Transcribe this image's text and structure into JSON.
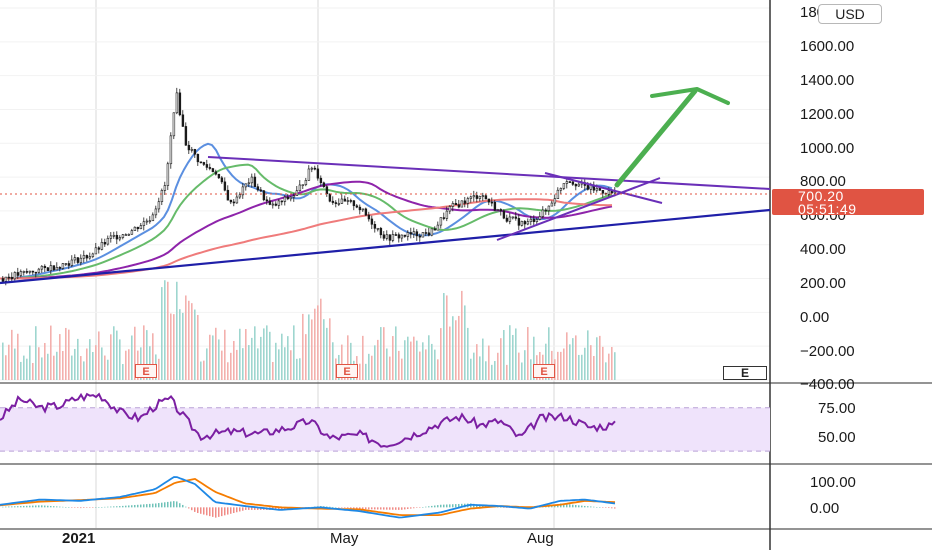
{
  "currency_button": "USD",
  "current_price": "700.20",
  "countdown": "05:51:49",
  "earnings_marker": "E",
  "colors": {
    "up": "#26a69a",
    "down": "#ef5350",
    "rsi": "#7b1fa2",
    "rsi_band": "#efe3fb",
    "ma_fast": "#5b8fe0",
    "ma_mid": "#66bb6a",
    "ma_slow": "#8e24aa",
    "ma_long": "#ef7b7b",
    "trend_purple": "#6a2fb8",
    "trend_blue": "#1f1fa8",
    "projection_arrow": "#4caf50",
    "price_tag": "#e05443",
    "macd": "#1e88e5",
    "signal": "#f57c00"
  },
  "chart_data": [
    {
      "type": "candlestick",
      "title": "",
      "y_axis_labels": [
        "1800.00",
        "1600.00",
        "1400.00",
        "1200.00",
        "1000.00",
        "800.00",
        "600.00",
        "400.00",
        "200.00",
        "0.00",
        "−200.00",
        "−400.00"
      ],
      "x_axis_labels": [
        "2021",
        "May",
        "Aug"
      ],
      "ylim": [
        -400,
        1800
      ],
      "last_price": 700.2,
      "peak_price": 1310,
      "overlays": [
        "moving averages",
        "descending resistance trendline",
        "ascending support trendline",
        "wedge lines",
        "projection arrow"
      ],
      "price_path": [
        {
          "x": 0,
          "close": 200
        },
        {
          "x": 30,
          "close": 240
        },
        {
          "x": 60,
          "close": 280
        },
        {
          "x": 90,
          "close": 340
        },
        {
          "x": 110,
          "close": 440
        },
        {
          "x": 130,
          "close": 480
        },
        {
          "x": 150,
          "close": 560
        },
        {
          "x": 165,
          "close": 760
        },
        {
          "x": 175,
          "close": 1310
        },
        {
          "x": 185,
          "close": 1000
        },
        {
          "x": 200,
          "close": 880
        },
        {
          "x": 215,
          "close": 830
        },
        {
          "x": 230,
          "close": 640
        },
        {
          "x": 250,
          "close": 790
        },
        {
          "x": 270,
          "close": 620
        },
        {
          "x": 295,
          "close": 700
        },
        {
          "x": 312,
          "close": 870
        },
        {
          "x": 330,
          "close": 660
        },
        {
          "x": 355,
          "close": 640
        },
        {
          "x": 385,
          "close": 440
        },
        {
          "x": 410,
          "close": 460
        },
        {
          "x": 430,
          "close": 470
        },
        {
          "x": 450,
          "close": 620
        },
        {
          "x": 480,
          "close": 700
        },
        {
          "x": 505,
          "close": 560
        },
        {
          "x": 525,
          "close": 520
        },
        {
          "x": 545,
          "close": 600
        },
        {
          "x": 565,
          "close": 790
        },
        {
          "x": 585,
          "close": 740
        },
        {
          "x": 600,
          "close": 720
        },
        {
          "x": 615,
          "close": 700
        }
      ]
    },
    {
      "type": "bar",
      "name": "volume",
      "note": "volume histogram under price"
    },
    {
      "type": "line",
      "name": "RSI",
      "y_axis_labels": [
        "75.00",
        "50.00"
      ],
      "ylim": [
        20,
        90
      ],
      "band": [
        30,
        70
      ],
      "points": [
        {
          "x": 0,
          "y": 60
        },
        {
          "x": 20,
          "y": 78
        },
        {
          "x": 40,
          "y": 70
        },
        {
          "x": 60,
          "y": 72
        },
        {
          "x": 80,
          "y": 80
        },
        {
          "x": 100,
          "y": 82
        },
        {
          "x": 120,
          "y": 66
        },
        {
          "x": 140,
          "y": 60
        },
        {
          "x": 155,
          "y": 72
        },
        {
          "x": 170,
          "y": 78
        },
        {
          "x": 185,
          "y": 60
        },
        {
          "x": 200,
          "y": 44
        },
        {
          "x": 230,
          "y": 48
        },
        {
          "x": 260,
          "y": 46
        },
        {
          "x": 290,
          "y": 52
        },
        {
          "x": 310,
          "y": 58
        },
        {
          "x": 330,
          "y": 42
        },
        {
          "x": 360,
          "y": 45
        },
        {
          "x": 385,
          "y": 36
        },
        {
          "x": 410,
          "y": 44
        },
        {
          "x": 440,
          "y": 56
        },
        {
          "x": 460,
          "y": 62
        },
        {
          "x": 480,
          "y": 54
        },
        {
          "x": 500,
          "y": 58
        },
        {
          "x": 520,
          "y": 42
        },
        {
          "x": 540,
          "y": 60
        },
        {
          "x": 565,
          "y": 62
        },
        {
          "x": 590,
          "y": 52
        },
        {
          "x": 615,
          "y": 54
        }
      ]
    },
    {
      "type": "line",
      "name": "MACD",
      "y_axis_labels": [
        "100.00",
        "0.00"
      ],
      "ylim": [
        -80,
        160
      ],
      "macd": [
        {
          "x": 0,
          "y": 10
        },
        {
          "x": 40,
          "y": 30
        },
        {
          "x": 80,
          "y": 25
        },
        {
          "x": 120,
          "y": 40
        },
        {
          "x": 155,
          "y": 70
        },
        {
          "x": 175,
          "y": 120
        },
        {
          "x": 195,
          "y": 90
        },
        {
          "x": 215,
          "y": 20
        },
        {
          "x": 245,
          "y": 5
        },
        {
          "x": 280,
          "y": -10
        },
        {
          "x": 320,
          "y": 0
        },
        {
          "x": 360,
          "y": -15
        },
        {
          "x": 400,
          "y": -40
        },
        {
          "x": 440,
          "y": -20
        },
        {
          "x": 470,
          "y": 10
        },
        {
          "x": 500,
          "y": 5
        },
        {
          "x": 530,
          "y": -5
        },
        {
          "x": 560,
          "y": 25
        },
        {
          "x": 585,
          "y": 30
        },
        {
          "x": 615,
          "y": 15
        }
      ],
      "signal": [
        {
          "x": 0,
          "y": 8
        },
        {
          "x": 40,
          "y": 22
        },
        {
          "x": 80,
          "y": 28
        },
        {
          "x": 120,
          "y": 35
        },
        {
          "x": 155,
          "y": 55
        },
        {
          "x": 175,
          "y": 95
        },
        {
          "x": 195,
          "y": 110
        },
        {
          "x": 215,
          "y": 60
        },
        {
          "x": 245,
          "y": 15
        },
        {
          "x": 280,
          "y": 0
        },
        {
          "x": 320,
          "y": -5
        },
        {
          "x": 360,
          "y": -8
        },
        {
          "x": 400,
          "y": -30
        },
        {
          "x": 440,
          "y": -30
        },
        {
          "x": 470,
          "y": -5
        },
        {
          "x": 500,
          "y": 5
        },
        {
          "x": 530,
          "y": 0
        },
        {
          "x": 560,
          "y": 10
        },
        {
          "x": 585,
          "y": 25
        },
        {
          "x": 615,
          "y": 20
        }
      ]
    }
  ]
}
